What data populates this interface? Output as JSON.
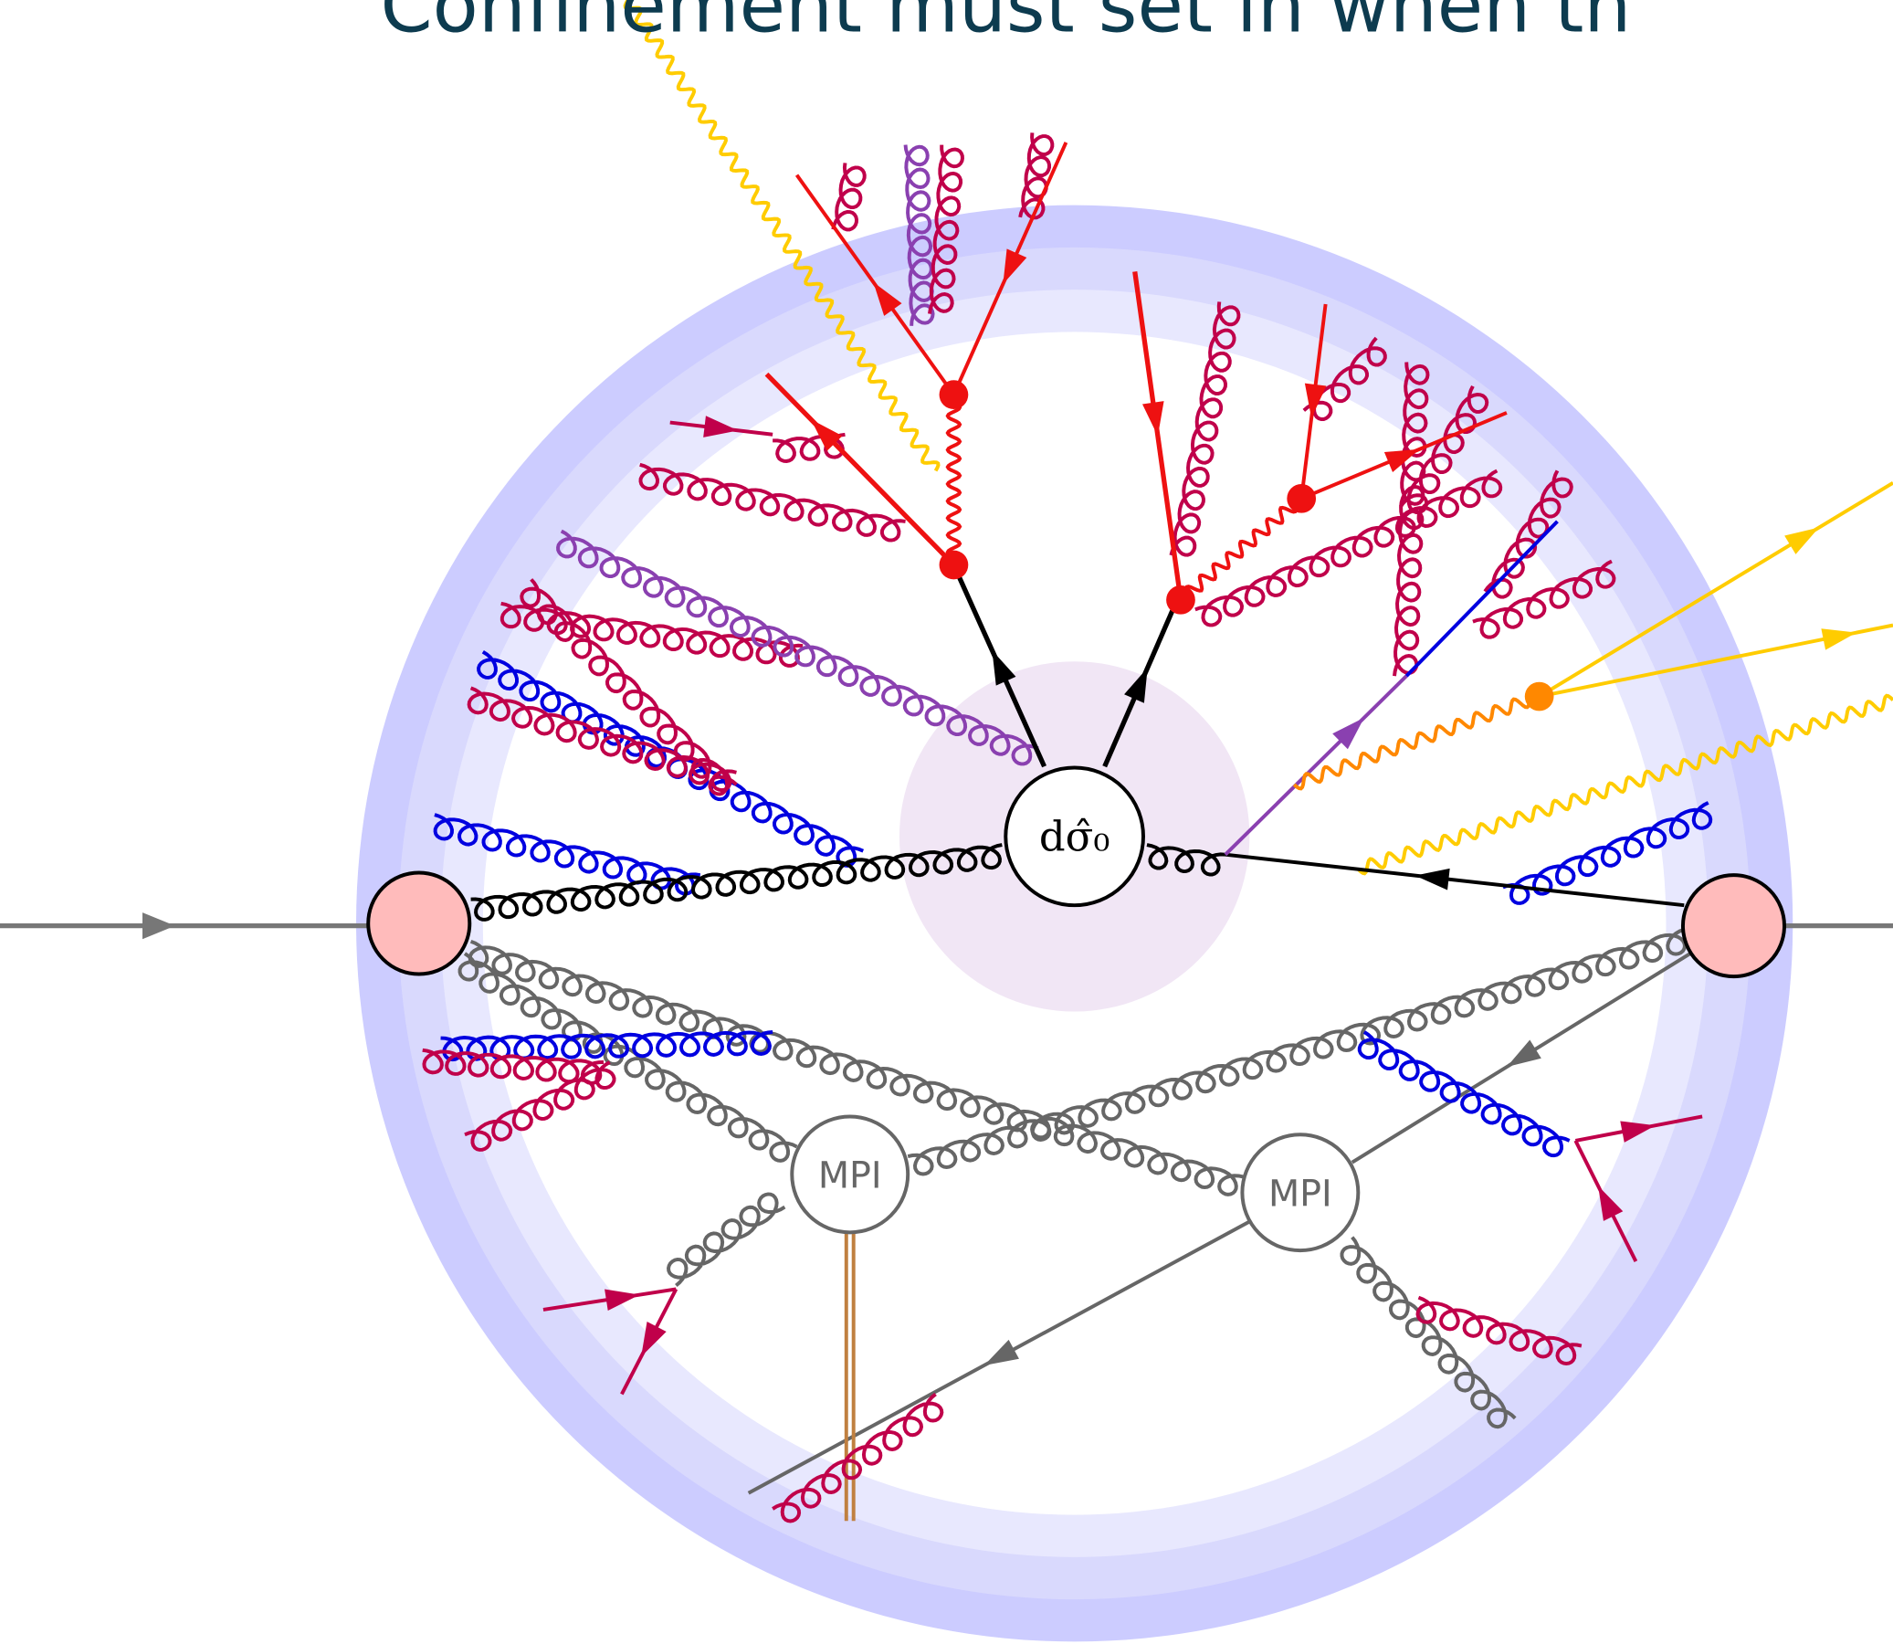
{
  "header": {
    "title": "Confinement must set in when th"
  },
  "hard_process": {
    "label": "dσ̂₀"
  },
  "mpi": [
    {
      "label": "MPI"
    },
    {
      "label": "MPI"
    }
  ]
}
